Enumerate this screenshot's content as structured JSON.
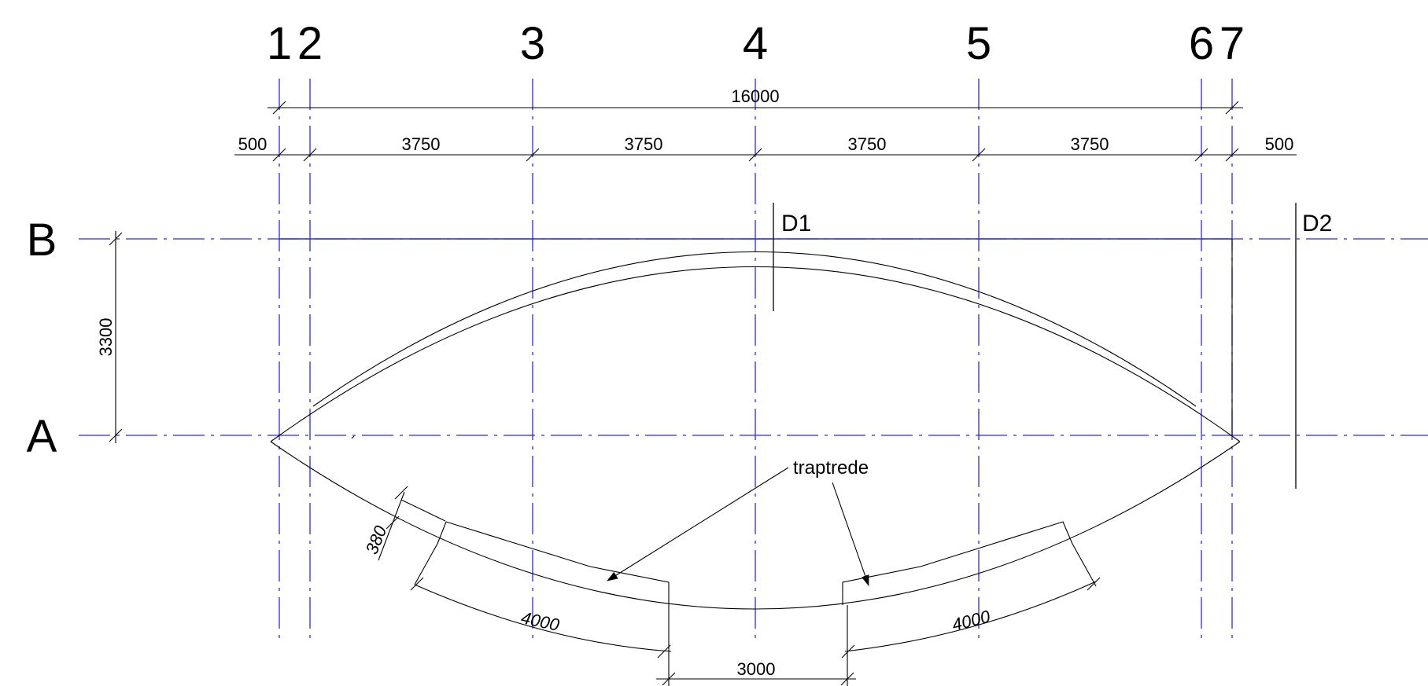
{
  "grid": {
    "vertical_labels": [
      "1",
      "2",
      "3",
      "4",
      "5",
      "6",
      "7"
    ],
    "horizontal_labels": [
      "B",
      "A"
    ]
  },
  "dimensions": {
    "overall": "16000",
    "edge_left": "500",
    "edge_right": "500",
    "bays": [
      "3750",
      "3750",
      "3750",
      "3750"
    ],
    "height": "3300",
    "step_depth": "380",
    "stair_left": "4000",
    "stair_right": "4000",
    "gap": "3000"
  },
  "sections": {
    "d1": "D1",
    "d2": "D2"
  },
  "annotation": {
    "traptrede": "traptrede"
  },
  "colors": {
    "grid_line": "#2a2aee",
    "ink": "#000000"
  }
}
